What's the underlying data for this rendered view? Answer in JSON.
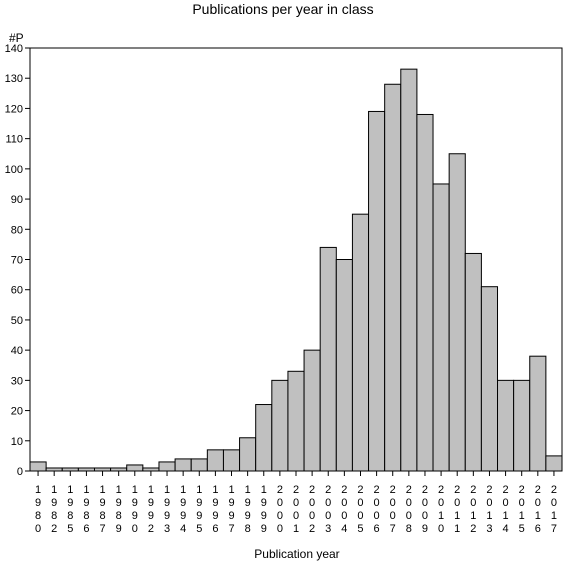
{
  "chart_data": {
    "type": "bar",
    "title": "Publications per year in class",
    "ylabel": "#P",
    "xlabel": "Publication year",
    "ylim": [
      0,
      140
    ],
    "yticks": [
      0,
      10,
      20,
      30,
      40,
      50,
      60,
      70,
      80,
      90,
      100,
      110,
      120,
      130,
      140
    ],
    "grid": false,
    "bar_color": "#c0c0c0",
    "categories": [
      "1980",
      "1982",
      "1985",
      "1986",
      "1987",
      "1989",
      "1990",
      "1992",
      "1993",
      "1994",
      "1995",
      "1996",
      "1997",
      "1998",
      "1999",
      "2000",
      "2001",
      "2002",
      "2003",
      "2004",
      "2005",
      "2006",
      "2007",
      "2008",
      "2009",
      "2010",
      "2011",
      "2012",
      "2013",
      "2014",
      "2015",
      "2016",
      "2017"
    ],
    "values": [
      3,
      1,
      1,
      1,
      1,
      1,
      2,
      1,
      3,
      4,
      4,
      7,
      7,
      11,
      22,
      30,
      33,
      40,
      74,
      70,
      85,
      119,
      128,
      133,
      118,
      95,
      105,
      72,
      61,
      30,
      30,
      38,
      5
    ]
  }
}
